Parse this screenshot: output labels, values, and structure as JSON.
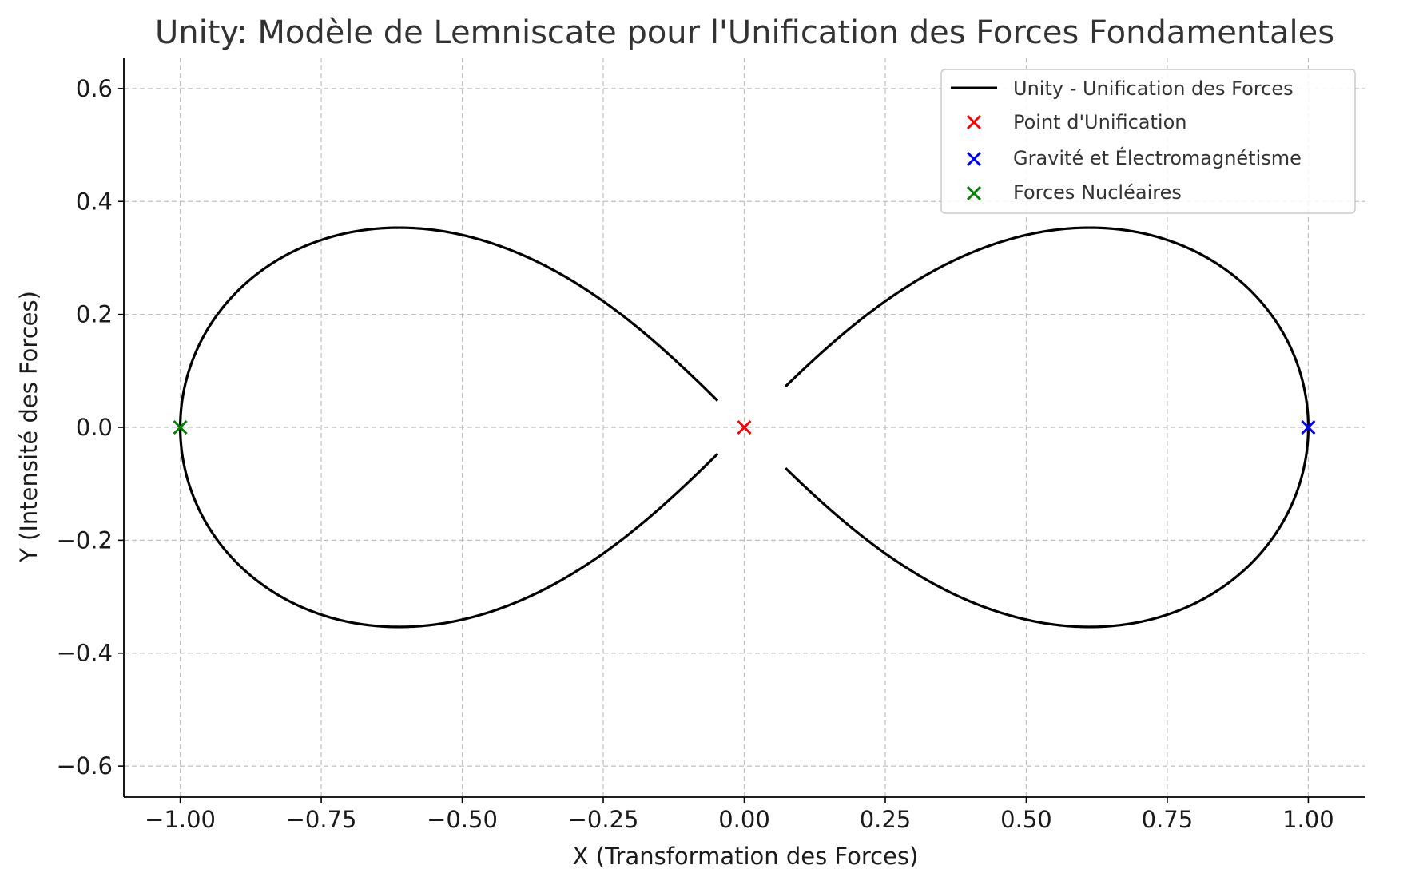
{
  "chart_data": {
    "type": "line",
    "title": "Unity: Modèle de Lemniscate pour l'Unification des Forces Fondamentales",
    "xlabel": "X (Transformation des Forces)",
    "ylabel": "Y (Intensité des Forces)",
    "xlim": [
      -1.1,
      1.1
    ],
    "ylim": [
      -0.655,
      0.655
    ],
    "xticks": [
      -1.0,
      -0.75,
      -0.5,
      -0.25,
      0.0,
      0.25,
      0.5,
      0.75,
      1.0
    ],
    "xtick_labels": [
      "−1.00",
      "−0.75",
      "−0.50",
      "−0.25",
      "0.00",
      "0.25",
      "0.50",
      "0.75",
      "1.00"
    ],
    "yticks": [
      0.6,
      0.4,
      0.2,
      0.0,
      -0.2,
      -0.4,
      -0.6
    ],
    "ytick_labels": [
      "0.6",
      "0.4",
      "0.2",
      "0.0",
      "−0.2",
      "−0.4",
      "−0.6"
    ],
    "grid": true,
    "legend_position": "top-right",
    "series": [
      {
        "name": "Unity - Unification des Forces",
        "kind": "line",
        "color": "#000000",
        "curve": "lemniscate of Bernoulli, a = 1",
        "visible_segments": [
          {
            "x": [
              -0.047,
              -0.25,
              -0.5,
              -0.6124,
              -0.75,
              -0.9,
              -1.0
            ],
            "y": [
              0.047,
              0.224,
              0.335,
              0.3536,
              0.338,
              0.243,
              0.0
            ]
          },
          {
            "x": [
              -0.047,
              -0.25,
              -0.5,
              -0.6124,
              -0.75,
              -0.9,
              -1.0
            ],
            "y": [
              -0.047,
              -0.224,
              -0.335,
              -0.3536,
              -0.338,
              -0.243,
              0.0
            ]
          },
          {
            "x": [
              0.072,
              0.25,
              0.5,
              0.6124,
              0.75,
              0.9,
              1.0
            ],
            "y": [
              0.072,
              0.224,
              0.335,
              0.3536,
              0.338,
              0.243,
              0.0
            ]
          },
          {
            "x": [
              0.072,
              0.25,
              0.5,
              0.6124,
              0.75,
              0.9,
              1.0
            ],
            "y": [
              -0.072,
              -0.224,
              -0.335,
              -0.3536,
              -0.338,
              -0.243,
              0.0
            ]
          }
        ]
      },
      {
        "name": "Point d'Unification",
        "kind": "scatter",
        "marker": "x",
        "color": "#ff0000",
        "x": [
          0.0
        ],
        "y": [
          0.0
        ]
      },
      {
        "name": "Gravité et Électromagnétisme",
        "kind": "scatter",
        "marker": "x",
        "color": "#0000ff",
        "x": [
          1.0
        ],
        "y": [
          0.0
        ]
      },
      {
        "name": "Forces Nucléaires",
        "kind": "scatter",
        "marker": "x",
        "color": "#008000",
        "x": [
          -1.0
        ],
        "y": [
          0.0
        ]
      }
    ]
  }
}
